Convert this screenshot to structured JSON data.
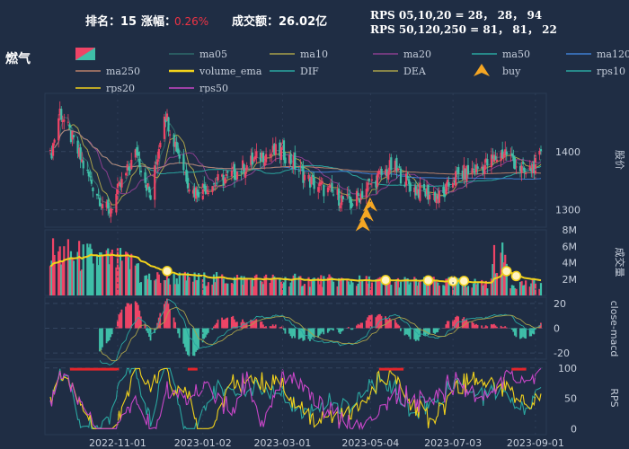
{
  "header": {
    "rank_label": "排名：15",
    "change_label": "涨幅：",
    "change_value": "0.26%",
    "turnover_label": "成交额：26.02亿",
    "rps_short": "RPS 05,10,20 = 28， 28， 94",
    "rps_long": "RPS 50,120,250 = 81， 81， 22",
    "sector": "燃气"
  },
  "colors": {
    "background": "#1f2d44",
    "up": "#ee4466",
    "down": "#3fbfa8",
    "volume_ema": "#f2d21b",
    "buy": "#f5a623",
    "rps_hot": "#e5252b"
  },
  "legend": [
    {
      "label": "ma05",
      "color": "#2f6b6b"
    },
    {
      "label": "ma10",
      "color": "#a8a04a"
    },
    {
      "label": "ma20",
      "color": "#8a3f8f"
    },
    {
      "label": "ma50",
      "color": "#2aa6a0"
    },
    {
      "label": "ma120",
      "color": "#3f7fd1"
    },
    {
      "label": "ma250",
      "color": "#b8806a"
    },
    {
      "label": "volume_ema",
      "color": "#f2d21b"
    },
    {
      "label": "DIF",
      "color": "#2aa6a0"
    },
    {
      "label": "DEA",
      "color": "#a8a04a"
    },
    {
      "label": "buy",
      "color": "#f5a623"
    },
    {
      "label": "rps10",
      "color": "#2aa6a0"
    },
    {
      "label": "rps20",
      "color": "#f2d21b"
    },
    {
      "label": "rps50",
      "color": "#c846c8"
    }
  ],
  "chart_data": [
    {
      "type": "candlestick",
      "ylabel": "股价",
      "yticks": [
        1300,
        1400
      ],
      "ylim": [
        1270,
        1500
      ],
      "x_dates": [
        "2022-11-01",
        "2023-01-02",
        "2023-03-01",
        "2023-05-04",
        "2023-07-03",
        "2023-09-01"
      ],
      "x_range": [
        "2022-09-13",
        "2023-09-05"
      ],
      "anchor_closes": [
        {
          "date": "2022-09-13",
          "close": 1390
        },
        {
          "date": "2022-09-20",
          "close": 1470
        },
        {
          "date": "2022-10-10",
          "close": 1360
        },
        {
          "date": "2022-10-25",
          "close": 1295
        },
        {
          "date": "2022-11-15",
          "close": 1400
        },
        {
          "date": "2022-11-25",
          "close": 1320
        },
        {
          "date": "2022-12-05",
          "close": 1470
        },
        {
          "date": "2022-12-25",
          "close": 1330
        },
        {
          "date": "2023-01-20",
          "close": 1355
        },
        {
          "date": "2023-02-15",
          "close": 1395
        },
        {
          "date": "2023-03-01",
          "close": 1400
        },
        {
          "date": "2023-03-20",
          "close": 1350
        },
        {
          "date": "2023-04-20",
          "close": 1310
        },
        {
          "date": "2023-05-04",
          "close": 1345
        },
        {
          "date": "2023-05-20",
          "close": 1375
        },
        {
          "date": "2023-06-05",
          "close": 1335
        },
        {
          "date": "2023-06-25",
          "close": 1320
        },
        {
          "date": "2023-07-03",
          "close": 1355
        },
        {
          "date": "2023-07-25",
          "close": 1375
        },
        {
          "date": "2023-08-10",
          "close": 1400
        },
        {
          "date": "2023-08-25",
          "close": 1360
        },
        {
          "date": "2023-09-05",
          "close": 1390
        }
      ],
      "buy_signals": [
        "2023-04-29",
        "2023-05-01",
        "2023-05-03"
      ]
    },
    {
      "type": "bar",
      "ylabel": "成交量",
      "yticks": [
        "2M",
        "4M",
        "6M",
        "8M"
      ],
      "ylim": [
        0,
        8000000
      ]
    },
    {
      "type": "bar",
      "ylabel": "close-macd",
      "yticks": [
        -20,
        0,
        20
      ],
      "ylim": [
        -25,
        25
      ]
    },
    {
      "type": "line",
      "ylabel": "RPS",
      "yticks": [
        0,
        50,
        100
      ],
      "ylim": [
        -10,
        110
      ]
    }
  ]
}
